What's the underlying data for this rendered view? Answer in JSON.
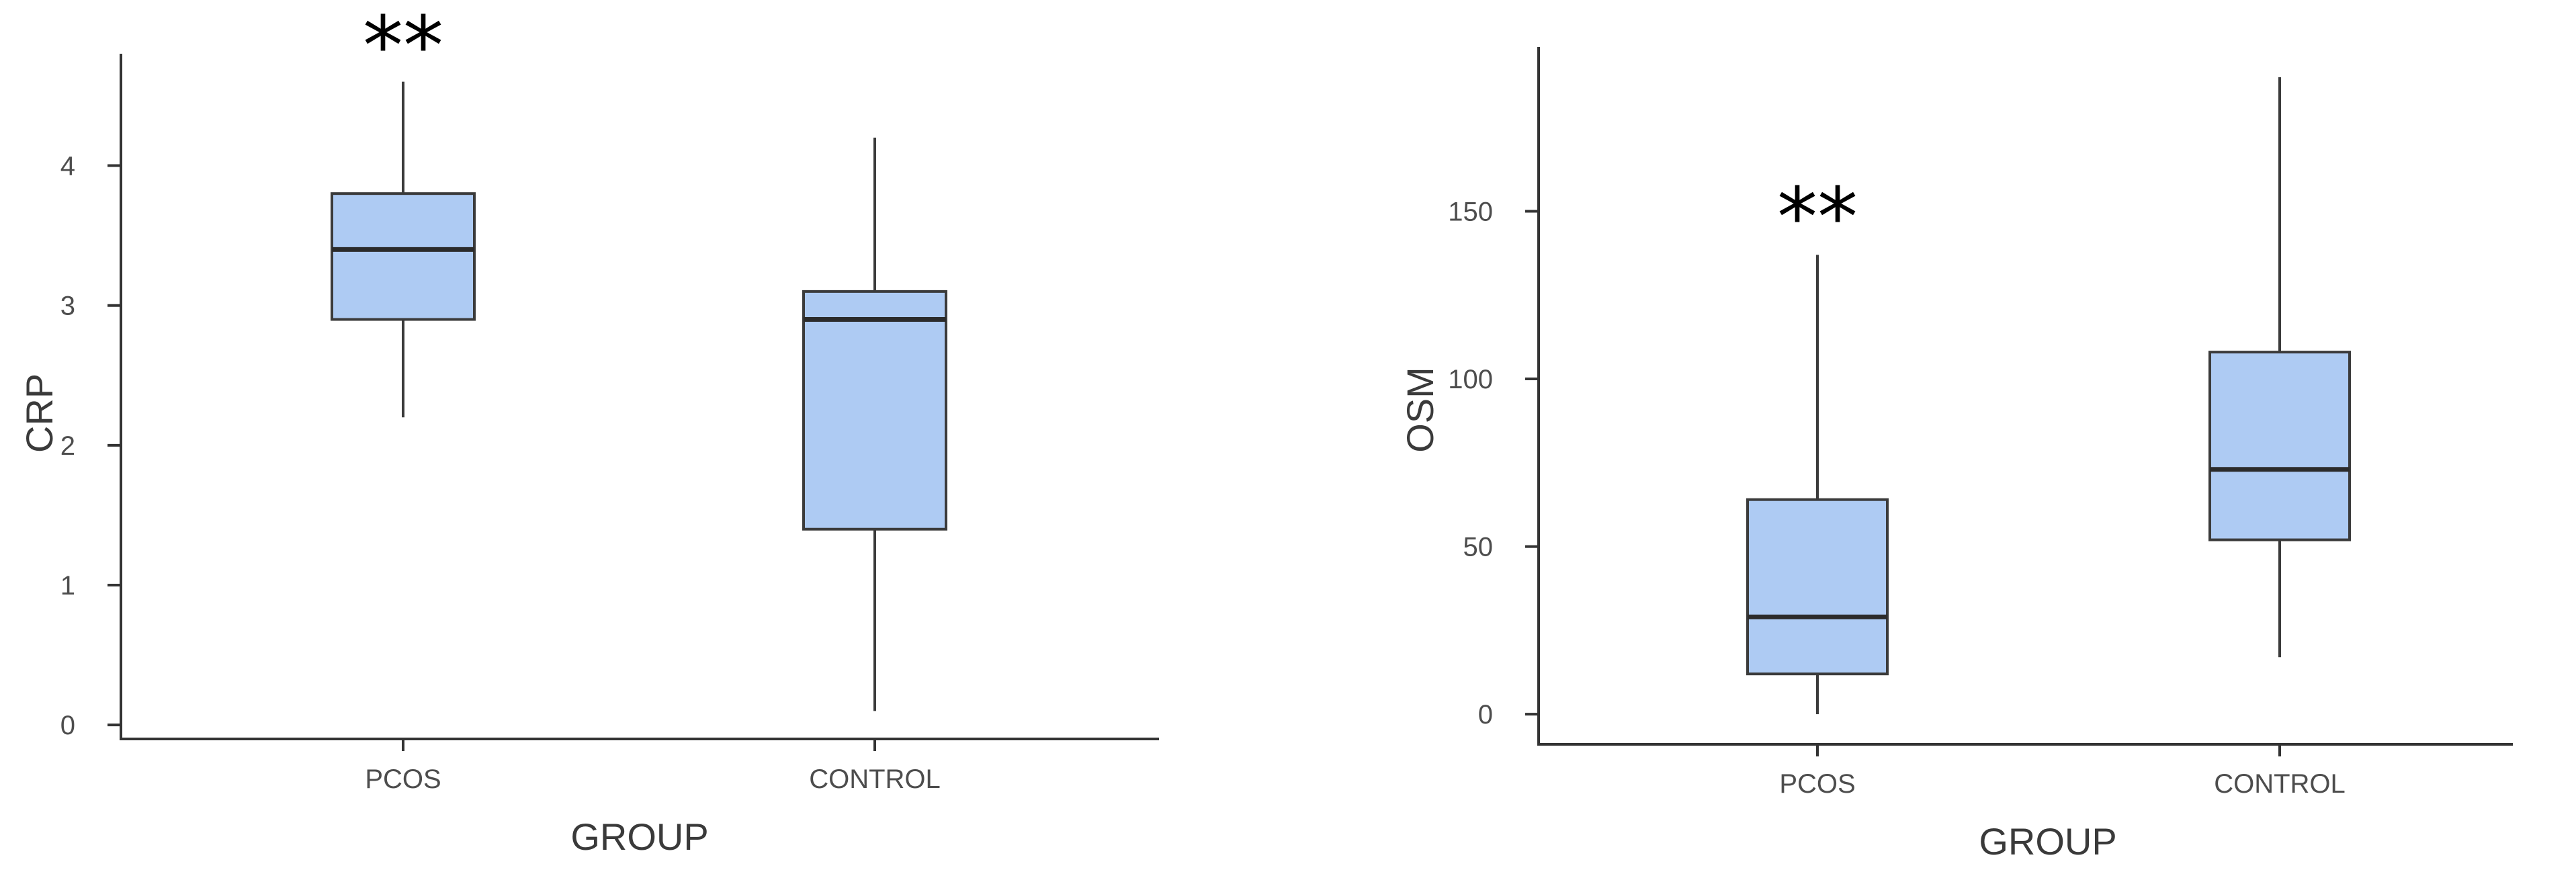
{
  "colors": {
    "box_fill": "#aecbf3",
    "box_stroke": "#3b3b3b",
    "median": "#2b2b2b",
    "axis": "#333333",
    "text": "#4d4d4d"
  },
  "chart_data": [
    {
      "type": "box",
      "xlabel": "GROUP",
      "ylabel": "CRP",
      "categories": [
        "PCOS",
        "CONTROL"
      ],
      "ylim": [
        -0.1,
        4.8
      ],
      "yticks": [
        0,
        1,
        2,
        3,
        4
      ],
      "grid": false,
      "series": [
        {
          "boxes": [
            {
              "category": "PCOS",
              "min": 2.2,
              "q1": 2.9,
              "median": 3.4,
              "q3": 3.8,
              "max": 4.6
            },
            {
              "category": "CONTROL",
              "min": 0.1,
              "q1": 1.4,
              "median": 2.9,
              "q3": 3.1,
              "max": 4.2
            }
          ]
        }
      ],
      "annotations": [
        {
          "category": "PCOS",
          "text": "**"
        }
      ]
    },
    {
      "type": "box",
      "xlabel": "GROUP",
      "ylabel": "OSM",
      "categories": [
        "PCOS",
        "CONTROL"
      ],
      "ylim": [
        -9,
        199
      ],
      "yticks": [
        0,
        50,
        100,
        150
      ],
      "grid": false,
      "series": [
        {
          "boxes": [
            {
              "category": "PCOS",
              "min": 0,
              "q1": 12,
              "median": 29,
              "q3": 64,
              "max": 137
            },
            {
              "category": "CONTROL",
              "min": 17,
              "q1": 52,
              "median": 73,
              "q3": 108,
              "max": 190
            }
          ]
        }
      ],
      "annotations": [
        {
          "category": "PCOS",
          "text": "**"
        }
      ]
    }
  ]
}
